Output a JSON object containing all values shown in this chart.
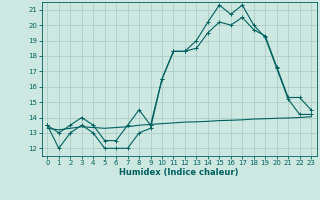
{
  "title": "",
  "xlabel": "Humidex (Indice chaleur)",
  "bg_color": "#cce8e0",
  "grid_color": "#b0ccc8",
  "line_color": "#006060",
  "xlim": [
    -0.5,
    23.5
  ],
  "ylim": [
    11.5,
    21.5
  ],
  "yticks": [
    12,
    13,
    14,
    15,
    16,
    17,
    18,
    19,
    20,
    21
  ],
  "xticks": [
    0,
    1,
    2,
    3,
    4,
    5,
    6,
    7,
    8,
    9,
    10,
    11,
    12,
    13,
    14,
    15,
    16,
    17,
    18,
    19,
    20,
    21,
    22,
    23
  ],
  "series1_x": [
    0,
    1,
    2,
    3,
    4,
    5,
    6,
    7,
    8,
    9,
    10,
    11,
    12,
    13,
    14,
    15,
    16,
    17,
    18,
    19,
    20,
    21,
    22,
    23
  ],
  "series1_y": [
    13.5,
    12.0,
    13.0,
    13.5,
    13.0,
    12.0,
    12.0,
    12.0,
    13.0,
    13.3,
    16.5,
    18.3,
    18.3,
    19.0,
    20.2,
    21.3,
    20.7,
    21.3,
    20.0,
    19.2,
    17.2,
    15.2,
    14.2,
    14.2
  ],
  "series2_x": [
    0,
    1,
    2,
    3,
    4,
    5,
    6,
    7,
    8,
    9,
    10,
    11,
    12,
    13,
    14,
    15,
    16,
    17,
    18,
    19,
    20,
    21,
    22,
    23
  ],
  "series2_y": [
    13.5,
    13.0,
    13.5,
    14.0,
    13.5,
    12.5,
    12.5,
    13.5,
    14.5,
    13.5,
    16.5,
    18.3,
    18.3,
    18.5,
    19.5,
    20.2,
    20.0,
    20.5,
    19.7,
    19.3,
    17.3,
    15.3,
    15.3,
    14.5
  ],
  "series3_x": [
    0,
    1,
    2,
    3,
    4,
    5,
    6,
    7,
    8,
    9,
    10,
    11,
    12,
    13,
    14,
    15,
    16,
    17,
    18,
    19,
    20,
    21,
    22,
    23
  ],
  "series3_y": [
    13.3,
    13.2,
    13.3,
    13.4,
    13.35,
    13.3,
    13.35,
    13.4,
    13.5,
    13.55,
    13.6,
    13.65,
    13.7,
    13.72,
    13.75,
    13.8,
    13.82,
    13.85,
    13.9,
    13.92,
    13.95,
    13.97,
    14.0,
    14.05
  ]
}
